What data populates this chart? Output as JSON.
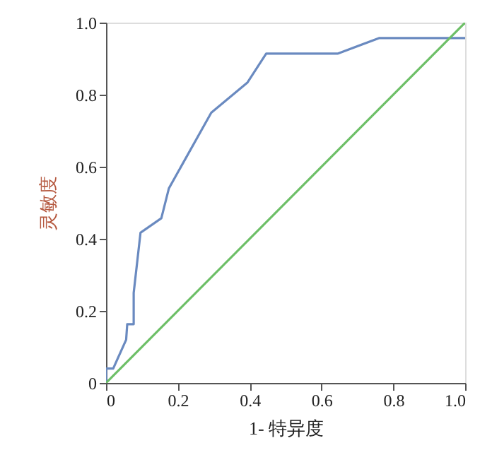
{
  "chart_data": {
    "type": "line",
    "xlabel": "1- 特异度",
    "ylabel": "灵敏度",
    "xlim": [
      0,
      1
    ],
    "ylim": [
      0,
      1
    ],
    "xticks": [
      {
        "value": 0,
        "label": "0"
      },
      0.2,
      0.4,
      0.6,
      0.8,
      {
        "value": 1,
        "label": "1.0"
      }
    ],
    "yticks": [
      {
        "value": 0,
        "label": "0"
      },
      0.2,
      0.4,
      0.6,
      0.8,
      {
        "value": 1,
        "label": "1.0"
      }
    ],
    "grid": false,
    "marker": "none",
    "line_style": "solid",
    "series": [
      {
        "color": "#6a8ac0",
        "x": [
          0,
          0,
          0.02,
          0.056,
          0.059,
          0.077,
          0.077,
          0.096,
          0.154,
          0.175,
          0.293,
          0.394,
          0.446,
          0.646,
          0.76,
          1.0
        ],
        "values": [
          0,
          0.04,
          0.04,
          0.12,
          0.163,
          0.163,
          0.25,
          0.417,
          0.457,
          0.54,
          0.75,
          0.834,
          0.914,
          0.914,
          0.957,
          0.957
        ]
      },
      {
        "color": "#6dbf67",
        "x": [
          0,
          1
        ],
        "values": [
          0,
          1
        ]
      }
    ]
  }
}
